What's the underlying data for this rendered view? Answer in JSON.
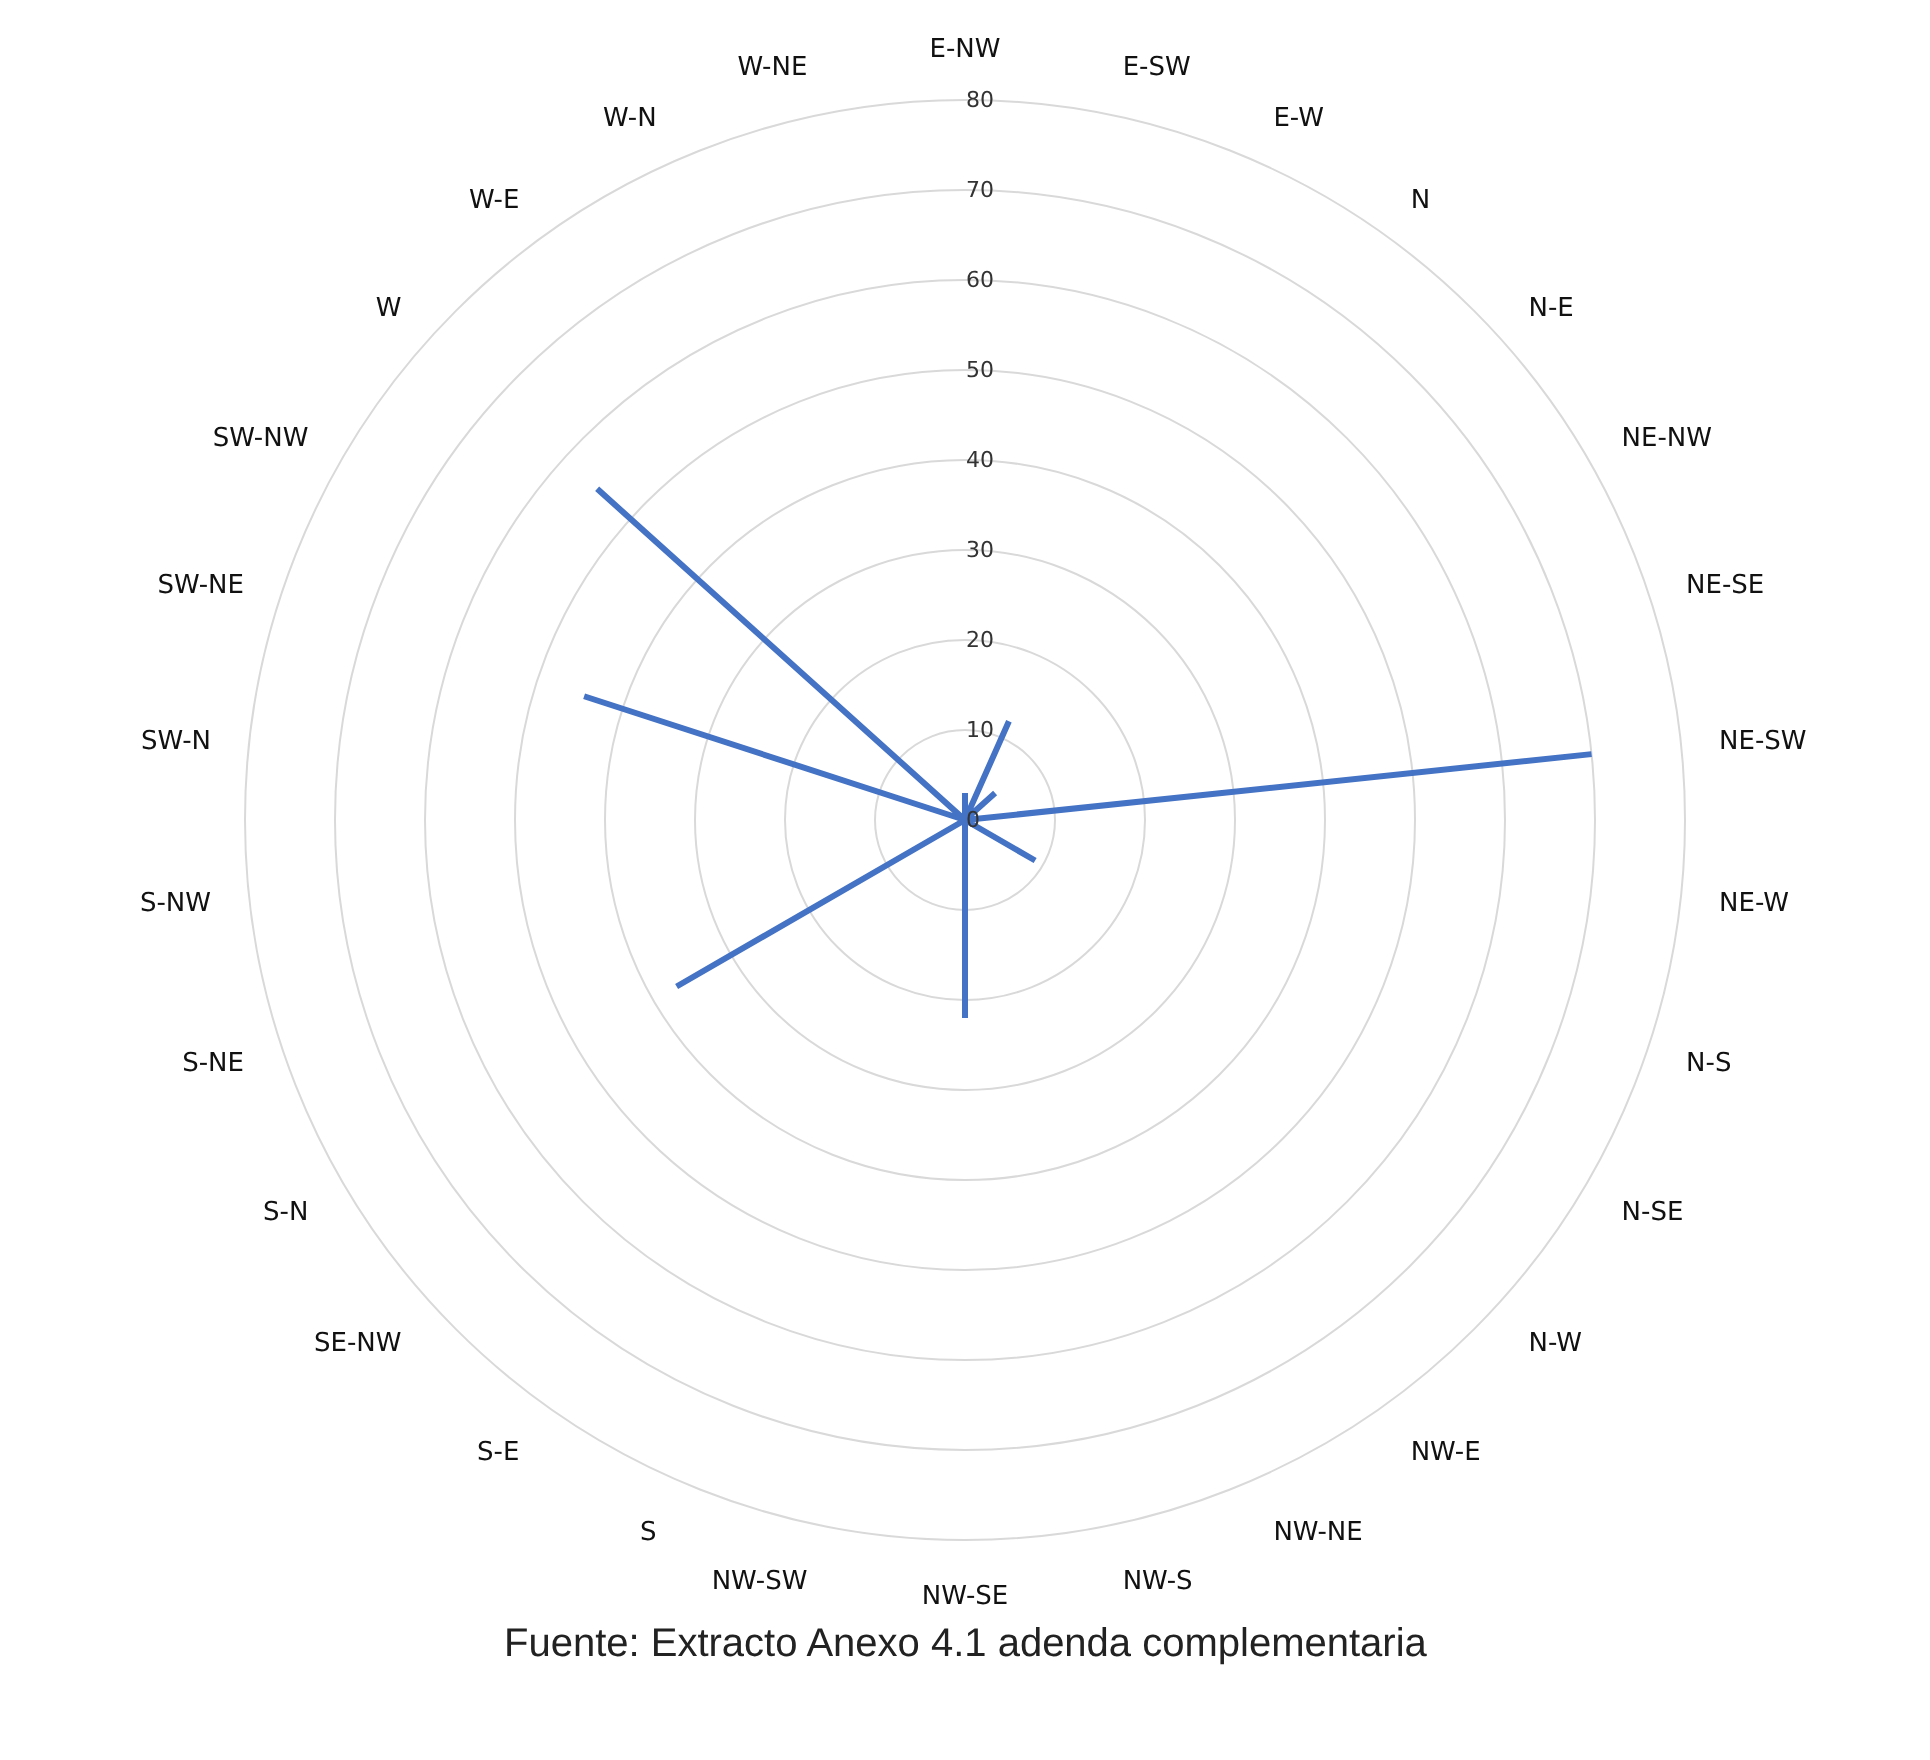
{
  "chart_data": {
    "type": "radar",
    "categories": [
      "E-NW",
      "E-SW",
      "E-W",
      "N",
      "N-E",
      "NE-NW",
      "NE-SE",
      "NE-SW",
      "NE-W",
      "N-S",
      "N-SE",
      "N-W",
      "NW-E",
      "NW-NE",
      "NW-S",
      "NW-SE",
      "NW-SW",
      "S",
      "S-E",
      "SE-NW",
      "S-N",
      "S-NE",
      "S-NW",
      "SW-N",
      "SW-NE",
      "SW-NW",
      "W",
      "W-E",
      "W-N",
      "W-NE"
    ],
    "series": [
      {
        "color": "#4472c4",
        "values": [
          3,
          0,
          12,
          0,
          4.5,
          0,
          0,
          70,
          0,
          0,
          9,
          0,
          0,
          0,
          0,
          22,
          0,
          0,
          0,
          0,
          37,
          0,
          0,
          0,
          44.5,
          0,
          55,
          0,
          0,
          0
        ]
      }
    ],
    "ylim": [
      0,
      80
    ],
    "yticks": [
      0,
      10,
      20,
      30,
      40,
      50,
      60,
      70,
      80
    ],
    "grid": true,
    "legend": false,
    "marker": "none",
    "annotations": [
      "Fuente: Extracto Anexo 4.1 adenda complementaria"
    ]
  }
}
